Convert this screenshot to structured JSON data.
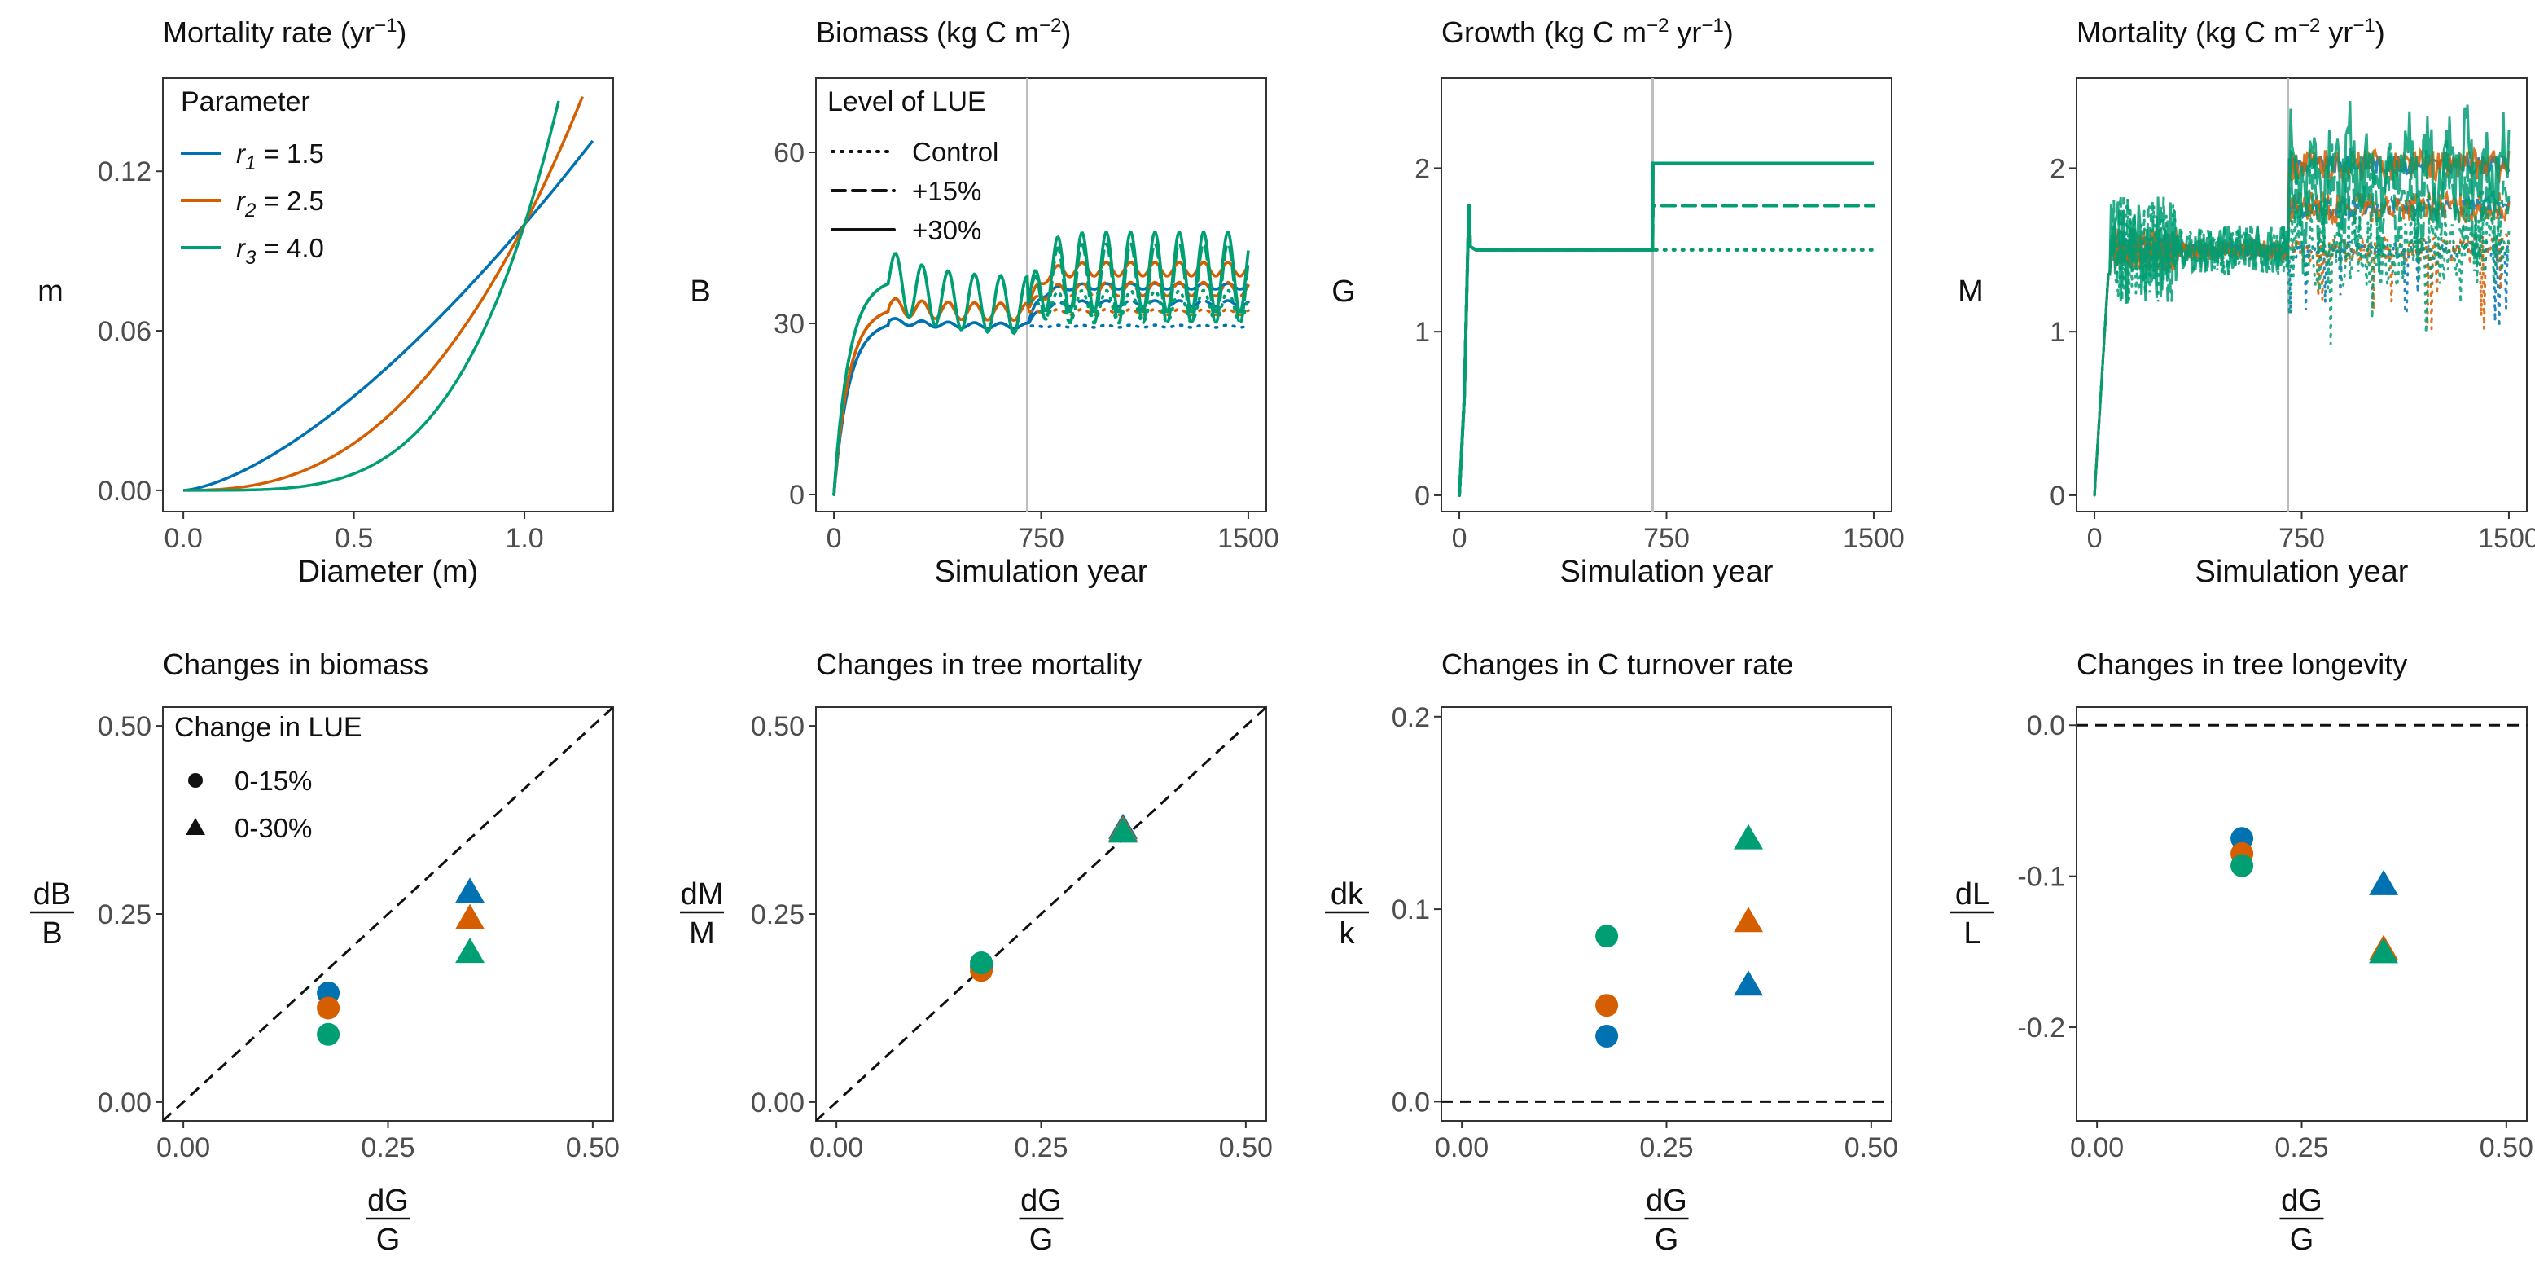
{
  "colors": {
    "r1": "#0072B2",
    "r2": "#D55E00",
    "r3": "#009E73",
    "vline": "#BDBDBD",
    "frame": "#333333"
  },
  "chart_data": [
    {
      "id": "mortality-rate",
      "type": "line",
      "title": "Mortality rate (yr⁻¹)",
      "xlabel": "Diameter (m)",
      "ylabel": "m",
      "xlim": [
        -0.06,
        1.26
      ],
      "ylim": [
        -0.008,
        0.155
      ],
      "xticks": [
        0,
        0.5,
        1.0
      ],
      "xtick_labels": [
        "0.0",
        "0.5",
        "1.0"
      ],
      "yticks": [
        0,
        0.06,
        0.12
      ],
      "ytick_labels": [
        "0.00",
        "0.06",
        "0.12"
      ],
      "function": "m = 0.1 * D^r",
      "series": [
        {
          "key": "r1",
          "param": "1.5",
          "xmax": 1.2
        },
        {
          "key": "r2",
          "param": "2.5",
          "xmax": 1.17
        },
        {
          "key": "r3",
          "param": "4.0",
          "xmax": 1.1
        }
      ],
      "legend": {
        "title": "Parameter",
        "position": "top-left",
        "entries": [
          {
            "key": "r1",
            "symbol": "r",
            "sub": "1",
            "rest": " = 1.5"
          },
          {
            "key": "r2",
            "symbol": "r",
            "sub": "2",
            "rest": " = 2.5"
          },
          {
            "key": "r3",
            "symbol": "r",
            "sub": "3",
            "rest": " = 4.0"
          }
        ]
      }
    },
    {
      "id": "biomass",
      "type": "line",
      "title": "Biomass (kg C m⁻²)",
      "xlabel": "Simulation year",
      "ylabel": "B",
      "xlim": [
        -65,
        1565
      ],
      "ylim": [
        -3,
        73
      ],
      "xticks": [
        0,
        750,
        1500
      ],
      "xtick_labels": [
        "0",
        "750",
        "1500"
      ],
      "yticks": [
        0,
        30,
        60
      ],
      "ytick_labels": [
        "0",
        "30",
        "60"
      ],
      "vline": 700,
      "legend": {
        "title": "Level of LUE",
        "position": "top-left",
        "entries": [
          {
            "dash": "dotted",
            "label": "Control"
          },
          {
            "dash": "dashed",
            "label": "+15%"
          },
          {
            "dash": "solid",
            "label": "+30%"
          }
        ]
      },
      "series": [
        {
          "key": "r1",
          "spin_peak": 30.5,
          "spin_eq": 29.5,
          "osc_amp": 0.5,
          "levels": {
            "control": 29.5,
            "plus15": 33.5,
            "plus30": 36.5
          },
          "osc_after": 0.5
        },
        {
          "key": "r2",
          "spin_peak": 33.0,
          "spin_eq": 32.0,
          "osc_amp": 1.5,
          "levels": {
            "control": 32.0,
            "plus15": 36.0,
            "plus30": 39.5
          },
          "osc_after": 1.2
        },
        {
          "key": "r3",
          "spin_peak": 38.0,
          "spin_eq": 33.0,
          "osc_amp": 5.0,
          "levels": {
            "control": 33.0,
            "plus15": 37.0,
            "plus30": 39.0
          },
          "osc_after": 7.0
        }
      ]
    },
    {
      "id": "growth",
      "type": "line",
      "title": "Growth (kg C m⁻² yr⁻¹)",
      "xlabel": "Simulation year",
      "ylabel": "G",
      "xlim": [
        -65,
        1565
      ],
      "ylim": [
        -0.1,
        2.55
      ],
      "xticks": [
        0,
        750,
        1500
      ],
      "xtick_labels": [
        "0",
        "750",
        "1500"
      ],
      "yticks": [
        0,
        1,
        2
      ],
      "ytick_labels": [
        "0",
        "1",
        "2"
      ],
      "vline": 700,
      "levels": {
        "spinup": 1.5,
        "control": 1.5,
        "plus15": 1.77,
        "plus30": 2.03
      },
      "spike": 1.78
    },
    {
      "id": "mortality",
      "type": "line",
      "title": "Mortality (kg C m⁻² yr⁻¹)",
      "xlabel": "Simulation year",
      "ylabel": "M",
      "xlim": [
        -65,
        1565
      ],
      "ylim": [
        -0.1,
        2.55
      ],
      "xticks": [
        0,
        750,
        1500
      ],
      "xtick_labels": [
        "0",
        "750",
        "1500"
      ],
      "yticks": [
        0,
        1,
        2
      ],
      "ytick_labels": [
        "0",
        "1",
        "2"
      ],
      "vline": 700,
      "levels": {
        "spinup": 1.5,
        "control": 1.5,
        "plus15": 1.76,
        "plus30": 2.02
      },
      "series": [
        {
          "key": "r1",
          "noise": 0.07
        },
        {
          "key": "r2",
          "noise": 0.12
        },
        {
          "key": "r3",
          "noise": 0.3
        }
      ]
    },
    {
      "id": "changes-biomass",
      "type": "scatter",
      "title": "Changes in biomass",
      "xlabel": {
        "num": "dG",
        "den": "G"
      },
      "ylabel": {
        "num": "dB",
        "den": "B"
      },
      "xlim": [
        -0.025,
        0.525
      ],
      "ylim": [
        -0.025,
        0.525
      ],
      "xticks": [
        0,
        0.25,
        0.5
      ],
      "xtick_labels": [
        "0.00",
        "0.25",
        "0.50"
      ],
      "yticks": [
        0,
        0.25,
        0.5
      ],
      "ytick_labels": [
        "0.00",
        "0.25",
        "0.50"
      ],
      "ref_line": "y = x",
      "legend": {
        "title": "Change in LUE",
        "position": "top-left",
        "entries": [
          {
            "shape": "circle",
            "label": "0-15%"
          },
          {
            "shape": "triangle",
            "label": "0-30%"
          }
        ]
      },
      "points": [
        {
          "key": "r1",
          "shape": "circle",
          "x": 0.177,
          "y": 0.145
        },
        {
          "key": "r2",
          "shape": "circle",
          "x": 0.177,
          "y": 0.125
        },
        {
          "key": "r3",
          "shape": "circle",
          "x": 0.177,
          "y": 0.09
        },
        {
          "key": "r1",
          "shape": "triangle",
          "x": 0.35,
          "y": 0.28
        },
        {
          "key": "r2",
          "shape": "triangle",
          "x": 0.35,
          "y": 0.245
        },
        {
          "key": "r3",
          "shape": "triangle",
          "x": 0.35,
          "y": 0.2
        }
      ]
    },
    {
      "id": "changes-mortality",
      "type": "scatter",
      "title": "Changes in tree mortality",
      "xlabel": {
        "num": "dG",
        "den": "G"
      },
      "ylabel": {
        "num": "dM",
        "den": "M"
      },
      "xlim": [
        -0.025,
        0.525
      ],
      "ylim": [
        -0.025,
        0.525
      ],
      "xticks": [
        0,
        0.25,
        0.5
      ],
      "xtick_labels": [
        "0.00",
        "0.25",
        "0.50"
      ],
      "yticks": [
        0,
        0.25,
        0.5
      ],
      "ytick_labels": [
        "0.00",
        "0.25",
        "0.50"
      ],
      "ref_line": "y = x",
      "points": [
        {
          "key": "r1",
          "shape": "circle",
          "x": 0.177,
          "y": 0.18
        },
        {
          "key": "r2",
          "shape": "circle",
          "x": 0.177,
          "y": 0.175
        },
        {
          "key": "r3",
          "shape": "circle",
          "x": 0.177,
          "y": 0.185
        },
        {
          "key": "r1",
          "shape": "triangle",
          "x": 0.35,
          "y": 0.365
        },
        {
          "key": "r2",
          "shape": "triangle",
          "x": 0.35,
          "y": 0.362
        },
        {
          "key": "r3",
          "shape": "triangle",
          "x": 0.35,
          "y": 0.36
        }
      ]
    },
    {
      "id": "changes-turnover",
      "type": "scatter",
      "title": "Changes in C turnover rate",
      "xlabel": {
        "num": "dG",
        "den": "G"
      },
      "ylabel": {
        "num": "dk",
        "den": "k"
      },
      "xlim": [
        -0.025,
        0.525
      ],
      "ylim": [
        -0.01,
        0.205
      ],
      "xticks": [
        0,
        0.25,
        0.5
      ],
      "xtick_labels": [
        "0.00",
        "0.25",
        "0.50"
      ],
      "yticks": [
        0,
        0.1,
        0.2
      ],
      "ytick_labels": [
        "0.0",
        "0.1",
        "0.2"
      ],
      "ref_line": "y = 0",
      "points": [
        {
          "key": "r1",
          "shape": "circle",
          "x": 0.177,
          "y": 0.034
        },
        {
          "key": "r2",
          "shape": "circle",
          "x": 0.177,
          "y": 0.05
        },
        {
          "key": "r3",
          "shape": "circle",
          "x": 0.177,
          "y": 0.086
        },
        {
          "key": "r1",
          "shape": "triangle",
          "x": 0.35,
          "y": 0.061
        },
        {
          "key": "r2",
          "shape": "triangle",
          "x": 0.35,
          "y": 0.094
        },
        {
          "key": "r3",
          "shape": "triangle",
          "x": 0.35,
          "y": 0.137
        }
      ]
    },
    {
      "id": "changes-longevity",
      "type": "scatter",
      "title": "Changes in tree longevity",
      "xlabel": {
        "num": "dG",
        "den": "G"
      },
      "ylabel": {
        "num": "dL",
        "den": "L"
      },
      "xlim": [
        -0.025,
        0.525
      ],
      "ylim": [
        -0.262,
        0.012
      ],
      "xticks": [
        0,
        0.25,
        0.5
      ],
      "xtick_labels": [
        "0.00",
        "0.25",
        "0.50"
      ],
      "yticks": [
        0,
        -0.1,
        -0.2
      ],
      "ytick_labels": [
        "0.0",
        "-0.1",
        "-0.2"
      ],
      "ref_line": "y = 0",
      "points": [
        {
          "key": "r1",
          "shape": "circle",
          "x": 0.177,
          "y": -0.075
        },
        {
          "key": "r2",
          "shape": "circle",
          "x": 0.177,
          "y": -0.085
        },
        {
          "key": "r3",
          "shape": "circle",
          "x": 0.177,
          "y": -0.093
        },
        {
          "key": "r1",
          "shape": "triangle",
          "x": 0.35,
          "y": -0.105
        },
        {
          "key": "r2",
          "shape": "triangle",
          "x": 0.35,
          "y": -0.148
        },
        {
          "key": "r3",
          "shape": "triangle",
          "x": 0.35,
          "y": -0.15
        }
      ]
    }
  ]
}
